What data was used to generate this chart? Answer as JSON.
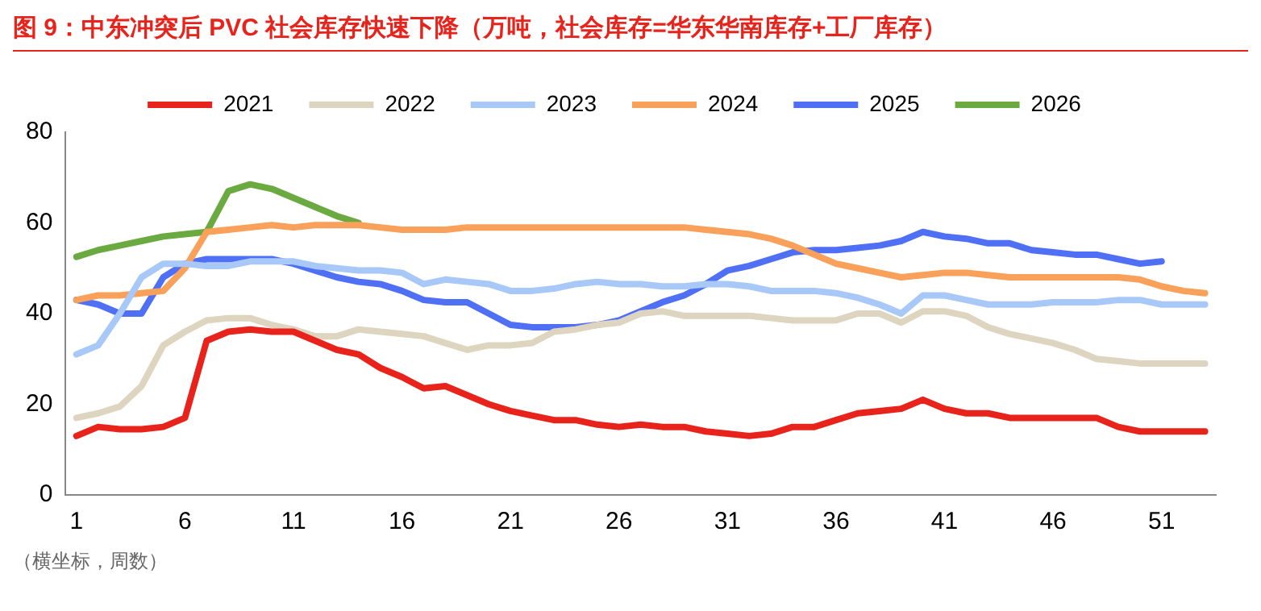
{
  "chart_data": {
    "type": "line",
    "title": "图 9：中东冲突后 PVC 社会库存快速下降（万吨，社会库存=华东华南库存+工厂库存）",
    "x": [
      1,
      2,
      3,
      4,
      5,
      6,
      7,
      8,
      9,
      10,
      11,
      12,
      13,
      14,
      15,
      16,
      17,
      18,
      19,
      20,
      21,
      22,
      23,
      24,
      25,
      26,
      27,
      28,
      29,
      30,
      31,
      32,
      33,
      34,
      35,
      36,
      37,
      38,
      39,
      40,
      41,
      42,
      43,
      44,
      45,
      46,
      47,
      48,
      49,
      50,
      51,
      52,
      53
    ],
    "series": [
      {
        "name": "2021",
        "color": "#e8231b",
        "values": [
          13,
          15,
          14.5,
          14.5,
          15,
          17,
          34,
          36,
          36.5,
          36,
          36,
          34,
          32,
          31,
          28,
          26,
          23.5,
          24,
          22,
          20,
          18.5,
          17.5,
          16.5,
          16.5,
          15.5,
          15,
          15.5,
          15,
          15,
          14,
          13.5,
          13,
          13.5,
          15,
          15,
          16.5,
          18,
          18.5,
          19,
          21,
          19,
          18,
          18,
          17,
          17,
          17,
          17,
          17,
          15,
          14,
          14,
          14,
          14
        ]
      },
      {
        "name": "2022",
        "color": "#ddd5c0",
        "values": [
          17,
          18,
          19.5,
          24,
          33,
          36,
          38.5,
          39,
          39,
          37.5,
          36.5,
          35,
          35,
          36.5,
          36,
          35.5,
          35,
          33.5,
          32,
          33,
          33,
          33.5,
          36,
          36.5,
          37.5,
          38,
          40,
          40.5,
          39.5,
          39.5,
          39.5,
          39.5,
          39,
          38.5,
          38.5,
          38.5,
          40,
          40,
          38,
          40.5,
          40.5,
          39.5,
          37,
          35.5,
          34.5,
          33.5,
          32,
          30,
          29.5,
          29,
          29,
          29,
          29
        ]
      },
      {
        "name": "2023",
        "color": "#a8c8f8",
        "values": [
          31,
          33,
          40,
          48,
          51,
          51,
          50.5,
          50.5,
          51.5,
          51.5,
          51.5,
          50.5,
          50,
          49.5,
          49.5,
          49,
          46.5,
          47.5,
          47,
          46.5,
          45,
          45,
          45.5,
          46.5,
          47,
          46.5,
          46.5,
          46,
          46,
          46.5,
          46.5,
          46,
          45,
          45,
          45,
          44.5,
          43.5,
          42,
          40,
          44,
          44,
          43,
          42,
          42,
          42,
          42.5,
          42.5,
          42.5,
          43,
          43,
          42,
          42,
          42
        ]
      },
      {
        "name": "2024",
        "color": "#f9a05a",
        "values": [
          43,
          44,
          44,
          44.5,
          45,
          50,
          58,
          58.5,
          59,
          59.5,
          59,
          59.5,
          59.5,
          59.5,
          59,
          58.5,
          58.5,
          58.5,
          59,
          59,
          59,
          59,
          59,
          59,
          59,
          59,
          59,
          59,
          59,
          58.5,
          58,
          57.5,
          56.5,
          55,
          53,
          51,
          50,
          49,
          48,
          48.5,
          49,
          49,
          48.5,
          48,
          48,
          48,
          48,
          48,
          48,
          47.5,
          46,
          45,
          44.5
        ]
      },
      {
        "name": "2025",
        "color": "#4f6ff5",
        "values": [
          43,
          42,
          40,
          40,
          48,
          51,
          52,
          52,
          52,
          52,
          51,
          49.5,
          48,
          47,
          46.5,
          45,
          43,
          42.5,
          42.5,
          40,
          37.5,
          37,
          37,
          37,
          37.5,
          38.5,
          40.5,
          42.5,
          44,
          46.5,
          49.5,
          50.5,
          52,
          53.5,
          54,
          54,
          54.5,
          55,
          56,
          58,
          57,
          56.5,
          55.5,
          55.5,
          54,
          53.5,
          53,
          53,
          52,
          51,
          51.5,
          null,
          null
        ]
      },
      {
        "name": "2026",
        "color": "#6aaa40",
        "values": [
          52.5,
          54,
          55,
          56,
          57,
          57.5,
          58,
          67,
          68.5,
          67.5,
          65.5,
          63.5,
          61.5,
          60,
          null,
          null,
          null,
          null,
          null,
          null,
          null,
          null,
          null,
          null,
          null,
          null,
          null,
          null,
          null,
          null,
          null,
          null,
          null,
          null,
          null,
          null,
          null,
          null,
          null,
          null,
          null,
          null,
          null,
          null,
          null,
          null,
          null,
          null,
          null,
          null,
          null,
          null,
          null
        ]
      }
    ],
    "xlim": [
      0.5,
      53.5
    ],
    "xticks": [
      1,
      6,
      11,
      16,
      21,
      26,
      31,
      36,
      41,
      46,
      51
    ],
    "ylim": [
      0,
      80
    ],
    "yticks": [
      0,
      20,
      40,
      60,
      80
    ],
    "grid": false,
    "legend": "top",
    "marker": "none",
    "line_style": "solid",
    "annotations": [
      "（横坐标，周数）"
    ]
  }
}
